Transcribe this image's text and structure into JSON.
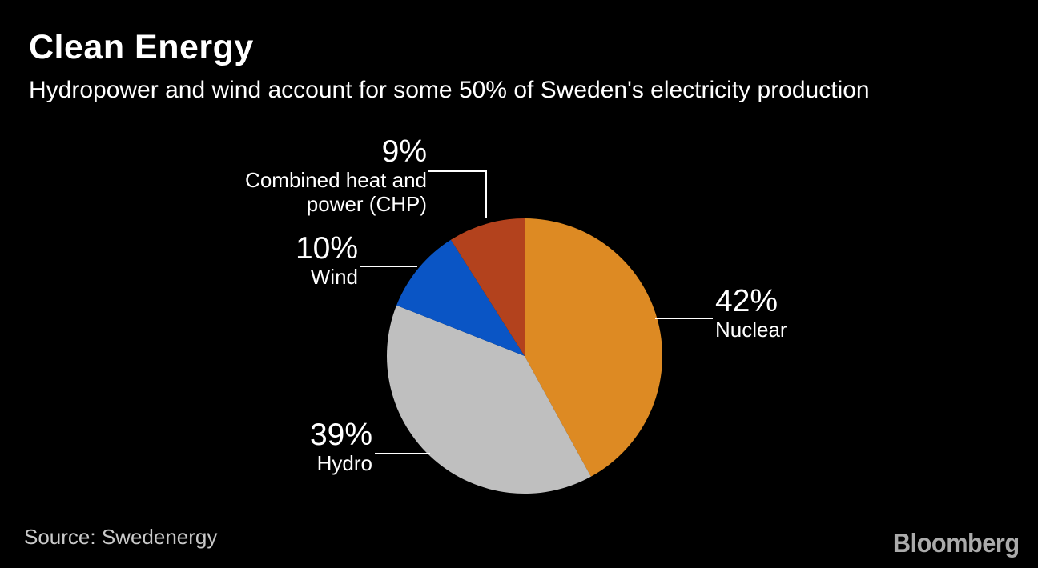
{
  "header": {
    "title": "Clean Energy",
    "subtitle": "Hydropower and wind account for some 50% of Sweden's electricity production"
  },
  "footer": {
    "source": "Source: Swedenergy",
    "brand": "Bloomberg"
  },
  "colors": {
    "background": "#000000",
    "text": "#FFFFFF",
    "leader_line": "#FFFFFF",
    "source_text": "#C9C9C9",
    "brand_text": "#ABABAB"
  },
  "chart_data": {
    "type": "pie",
    "title": "Clean Energy",
    "subtitle": "Hydropower and wind account for some 50% of Sweden's electricity production",
    "source": "Swedenergy",
    "direction": "clockwise",
    "start_angle_deg": 0,
    "legend_position": "none",
    "slices": [
      {
        "id": "nuclear",
        "name": "Nuclear",
        "value": 42,
        "pct_label": "42%",
        "color": "#DD8A23"
      },
      {
        "id": "hydro",
        "name": "Hydro",
        "value": 39,
        "pct_label": "39%",
        "color": "#BFBFBF"
      },
      {
        "id": "wind",
        "name": "Wind",
        "value": 10,
        "pct_label": "10%",
        "color": "#0A55C5"
      },
      {
        "id": "chp",
        "name": "Combined heat and power (CHP)",
        "value": 9,
        "pct_label": "9%",
        "color": "#B3421D"
      }
    ]
  }
}
